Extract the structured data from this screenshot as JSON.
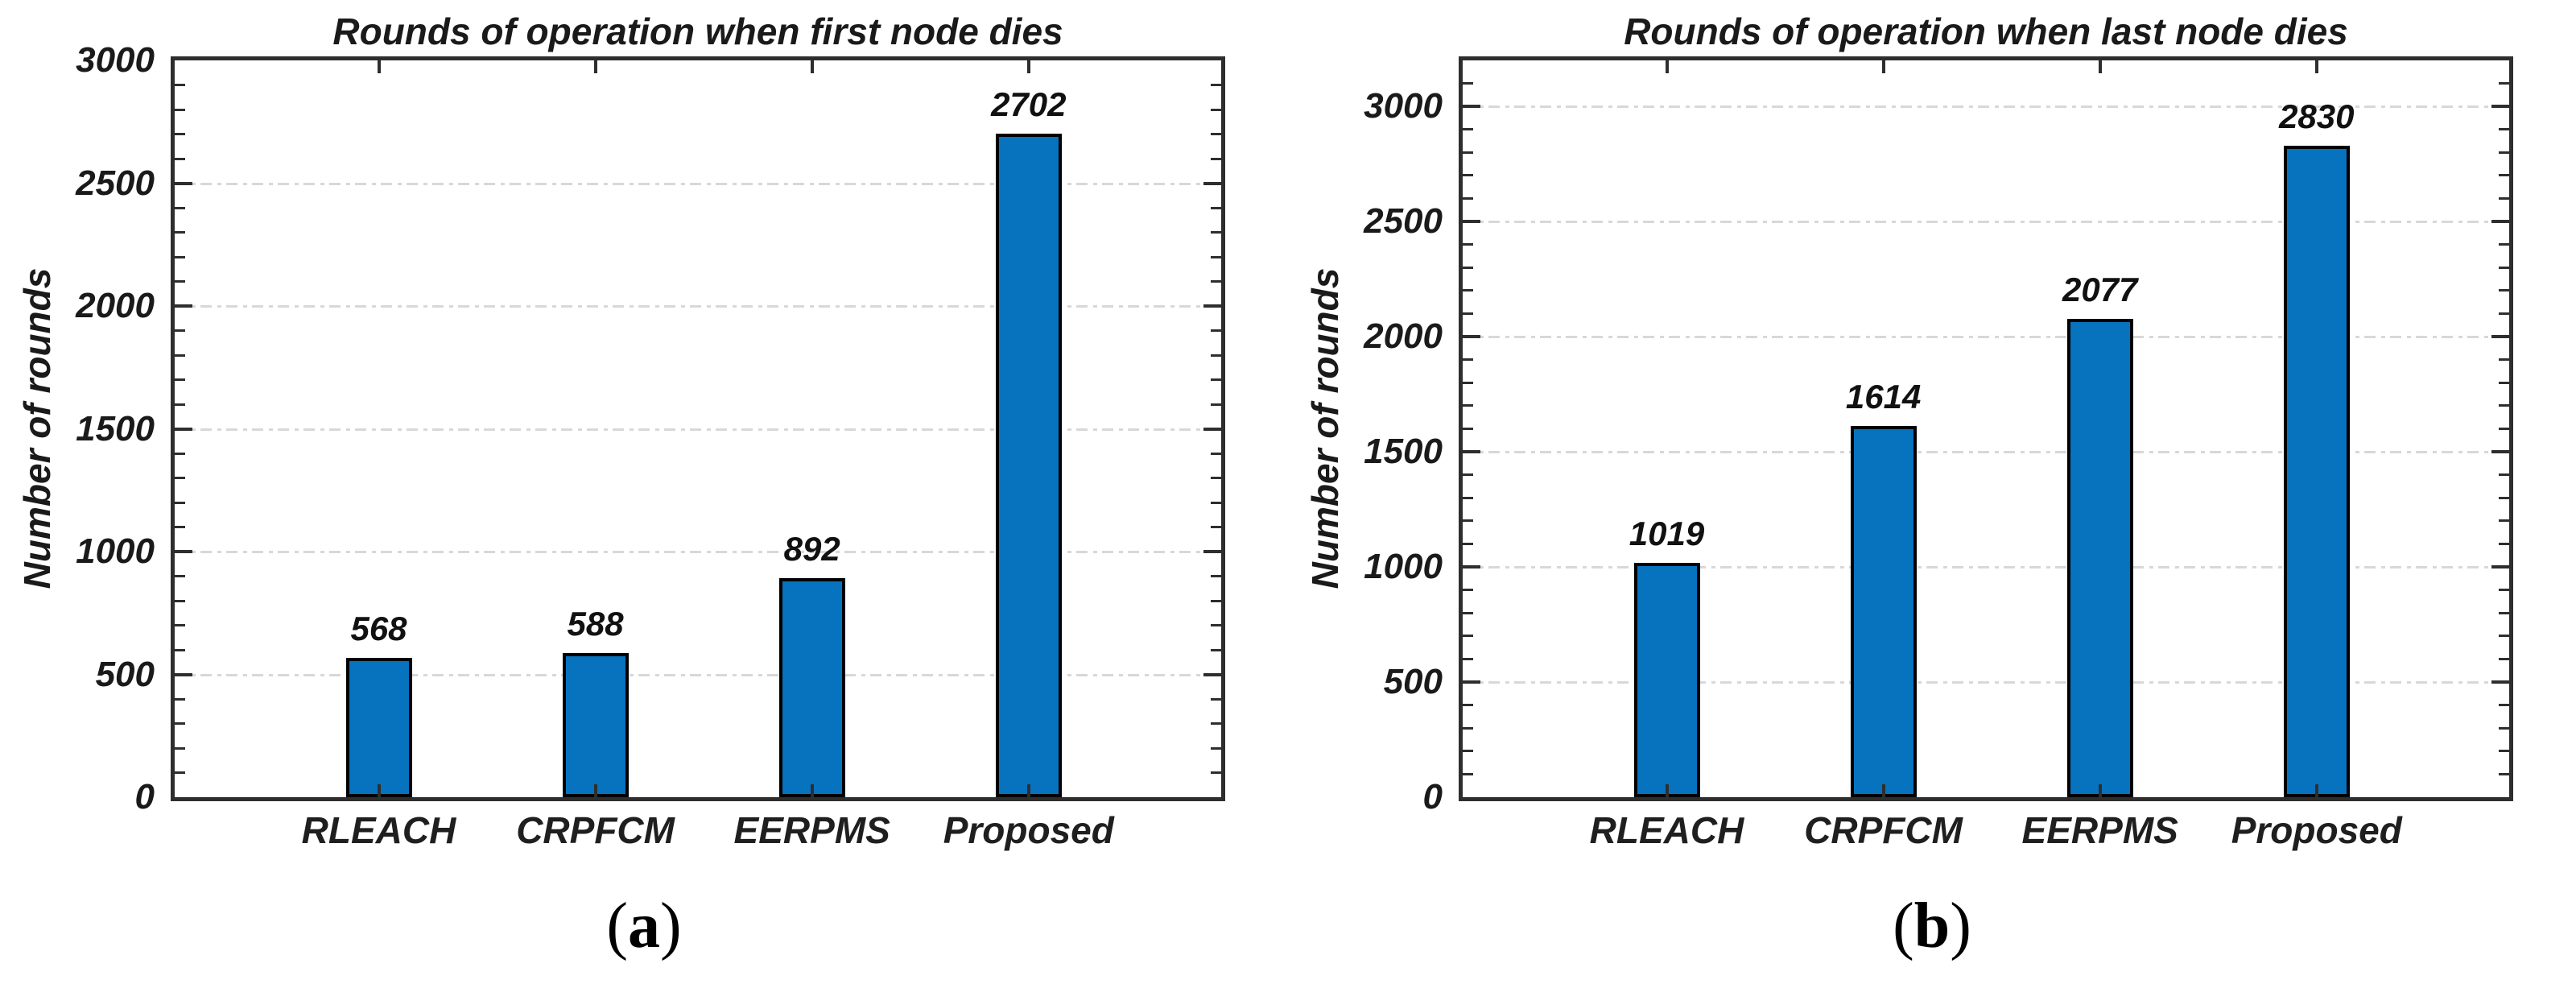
{
  "figure": {
    "background": "#ffffff",
    "text_color": "#1a1a1a",
    "axis_color": "#2e2e2e",
    "grid_color": "#d8d8d8",
    "bar_color": "#0772be",
    "bar_edge_color": "#000000"
  },
  "chart_data": [
    {
      "type": "bar",
      "title": "Rounds of operation when first node dies",
      "ylabel": "Number of rounds",
      "xlabel": "",
      "categories": [
        "RLEACH",
        "CRPFCM",
        "EERPMS",
        "Proposed"
      ],
      "values": [
        568,
        588,
        892,
        2702
      ],
      "bar_labels": [
        "568",
        "588",
        "892",
        "2702"
      ],
      "ylim": [
        0,
        3000
      ],
      "yticks": [
        0,
        500,
        1000,
        1500,
        2000,
        2500,
        3000
      ],
      "ytick_step": 500,
      "minor_tick_step": 100,
      "grid": "horizontal dashed at major ticks",
      "legend": "none",
      "caption": "(a)",
      "bar_color": "#0772be",
      "bar_edge_color": "#000000",
      "axis_color": "#2e2e2e",
      "grid_color": "#d8d8d8"
    },
    {
      "type": "bar",
      "title": "Rounds of operation when last node dies",
      "ylabel": "Number of rounds",
      "xlabel": "",
      "categories": [
        "RLEACH",
        "CRPFCM",
        "EERPMS",
        "Proposed"
      ],
      "values": [
        1019,
        1614,
        2077,
        2830
      ],
      "bar_labels": [
        "1019",
        "1614",
        "2077",
        "2830"
      ],
      "ylim": [
        0,
        3200
      ],
      "yticks": [
        0,
        500,
        1000,
        1500,
        2000,
        2500,
        3000
      ],
      "ytick_step": 500,
      "minor_tick_step": 100,
      "grid": "horizontal dashed at major ticks",
      "legend": "none",
      "caption": "(b)",
      "bar_color": "#0772be",
      "bar_edge_color": "#000000",
      "axis_color": "#2e2e2e",
      "grid_color": "#d8d8d8"
    }
  ]
}
